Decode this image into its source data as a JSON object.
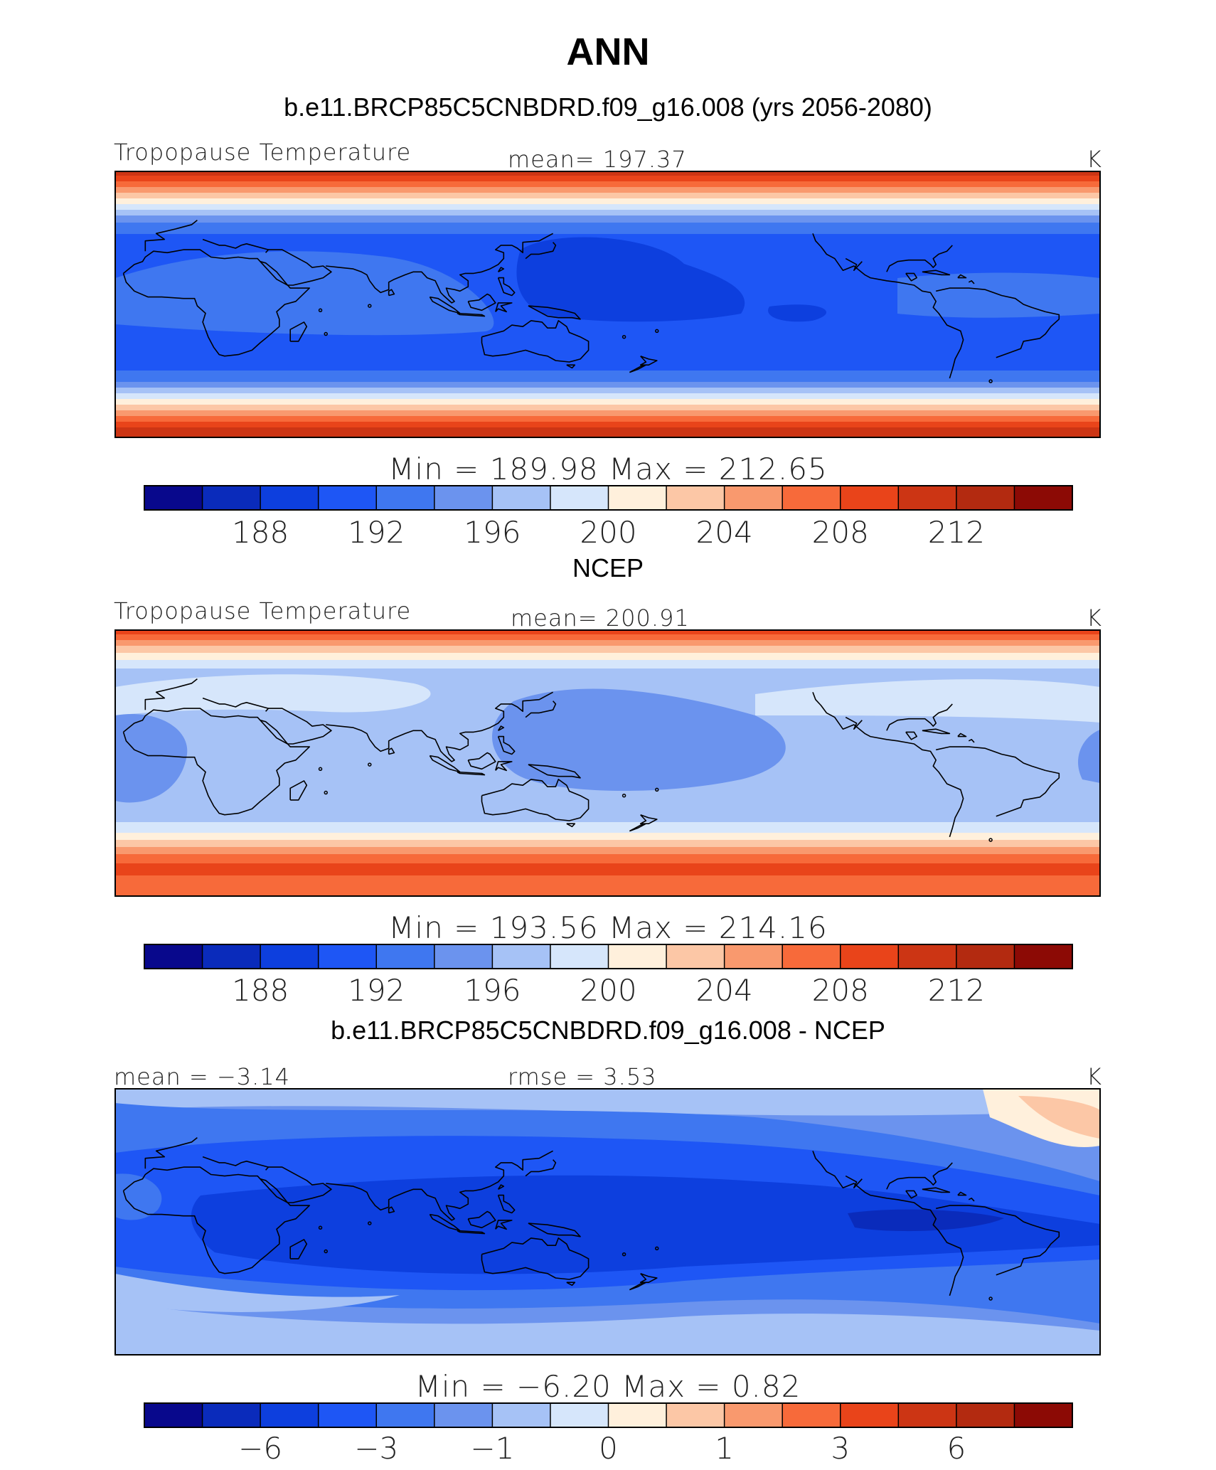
{
  "figure": {
    "title": "ANN"
  },
  "palette": [
    "#08088c",
    "#0a2bbb",
    "#0d3fde",
    "#1e56f5",
    "#3f77f0",
    "#6b93ee",
    "#a6c2f6",
    "#d6e6fb",
    "#fff0dc",
    "#fcc7a6",
    "#f9996e",
    "#f76a3a",
    "#e9441a",
    "#cc3514",
    "#b32a10",
    "#8c0a05"
  ],
  "coastline_color": "#000000",
  "panels": [
    {
      "id": "model",
      "title": "b.e11.BRCP85C5CNBDRD.f09_g16.008 (yrs 2056-2080)",
      "left_label": "Tropopause Temperature",
      "center_label": "mean= 197.37",
      "right_label": "K",
      "minmax_label": "Min  =  189.98  Max  =  212.65",
      "colorbar_ticks": [
        "188",
        "192",
        "196",
        "200",
        "204",
        "208",
        "212"
      ]
    },
    {
      "id": "obs",
      "title": "NCEP",
      "left_label": "Tropopause Temperature",
      "center_label": "mean= 200.91",
      "right_label": "K",
      "minmax_label": "Min  =  193.56  Max  =  214.16",
      "colorbar_ticks": [
        "188",
        "192",
        "196",
        "200",
        "204",
        "208",
        "212"
      ]
    },
    {
      "id": "diff",
      "title": "b.e11.BRCP85C5CNBDRD.f09_g16.008 - NCEP",
      "left_label": "mean =   −3.14",
      "center_label": "rmse =    3.53",
      "right_label": "K",
      "minmax_label": "Min  =   −6.20  Max  =    0.82",
      "colorbar_ticks": [
        "−6",
        "−3",
        "−1",
        "0",
        "1",
        "3",
        "6"
      ]
    }
  ]
}
